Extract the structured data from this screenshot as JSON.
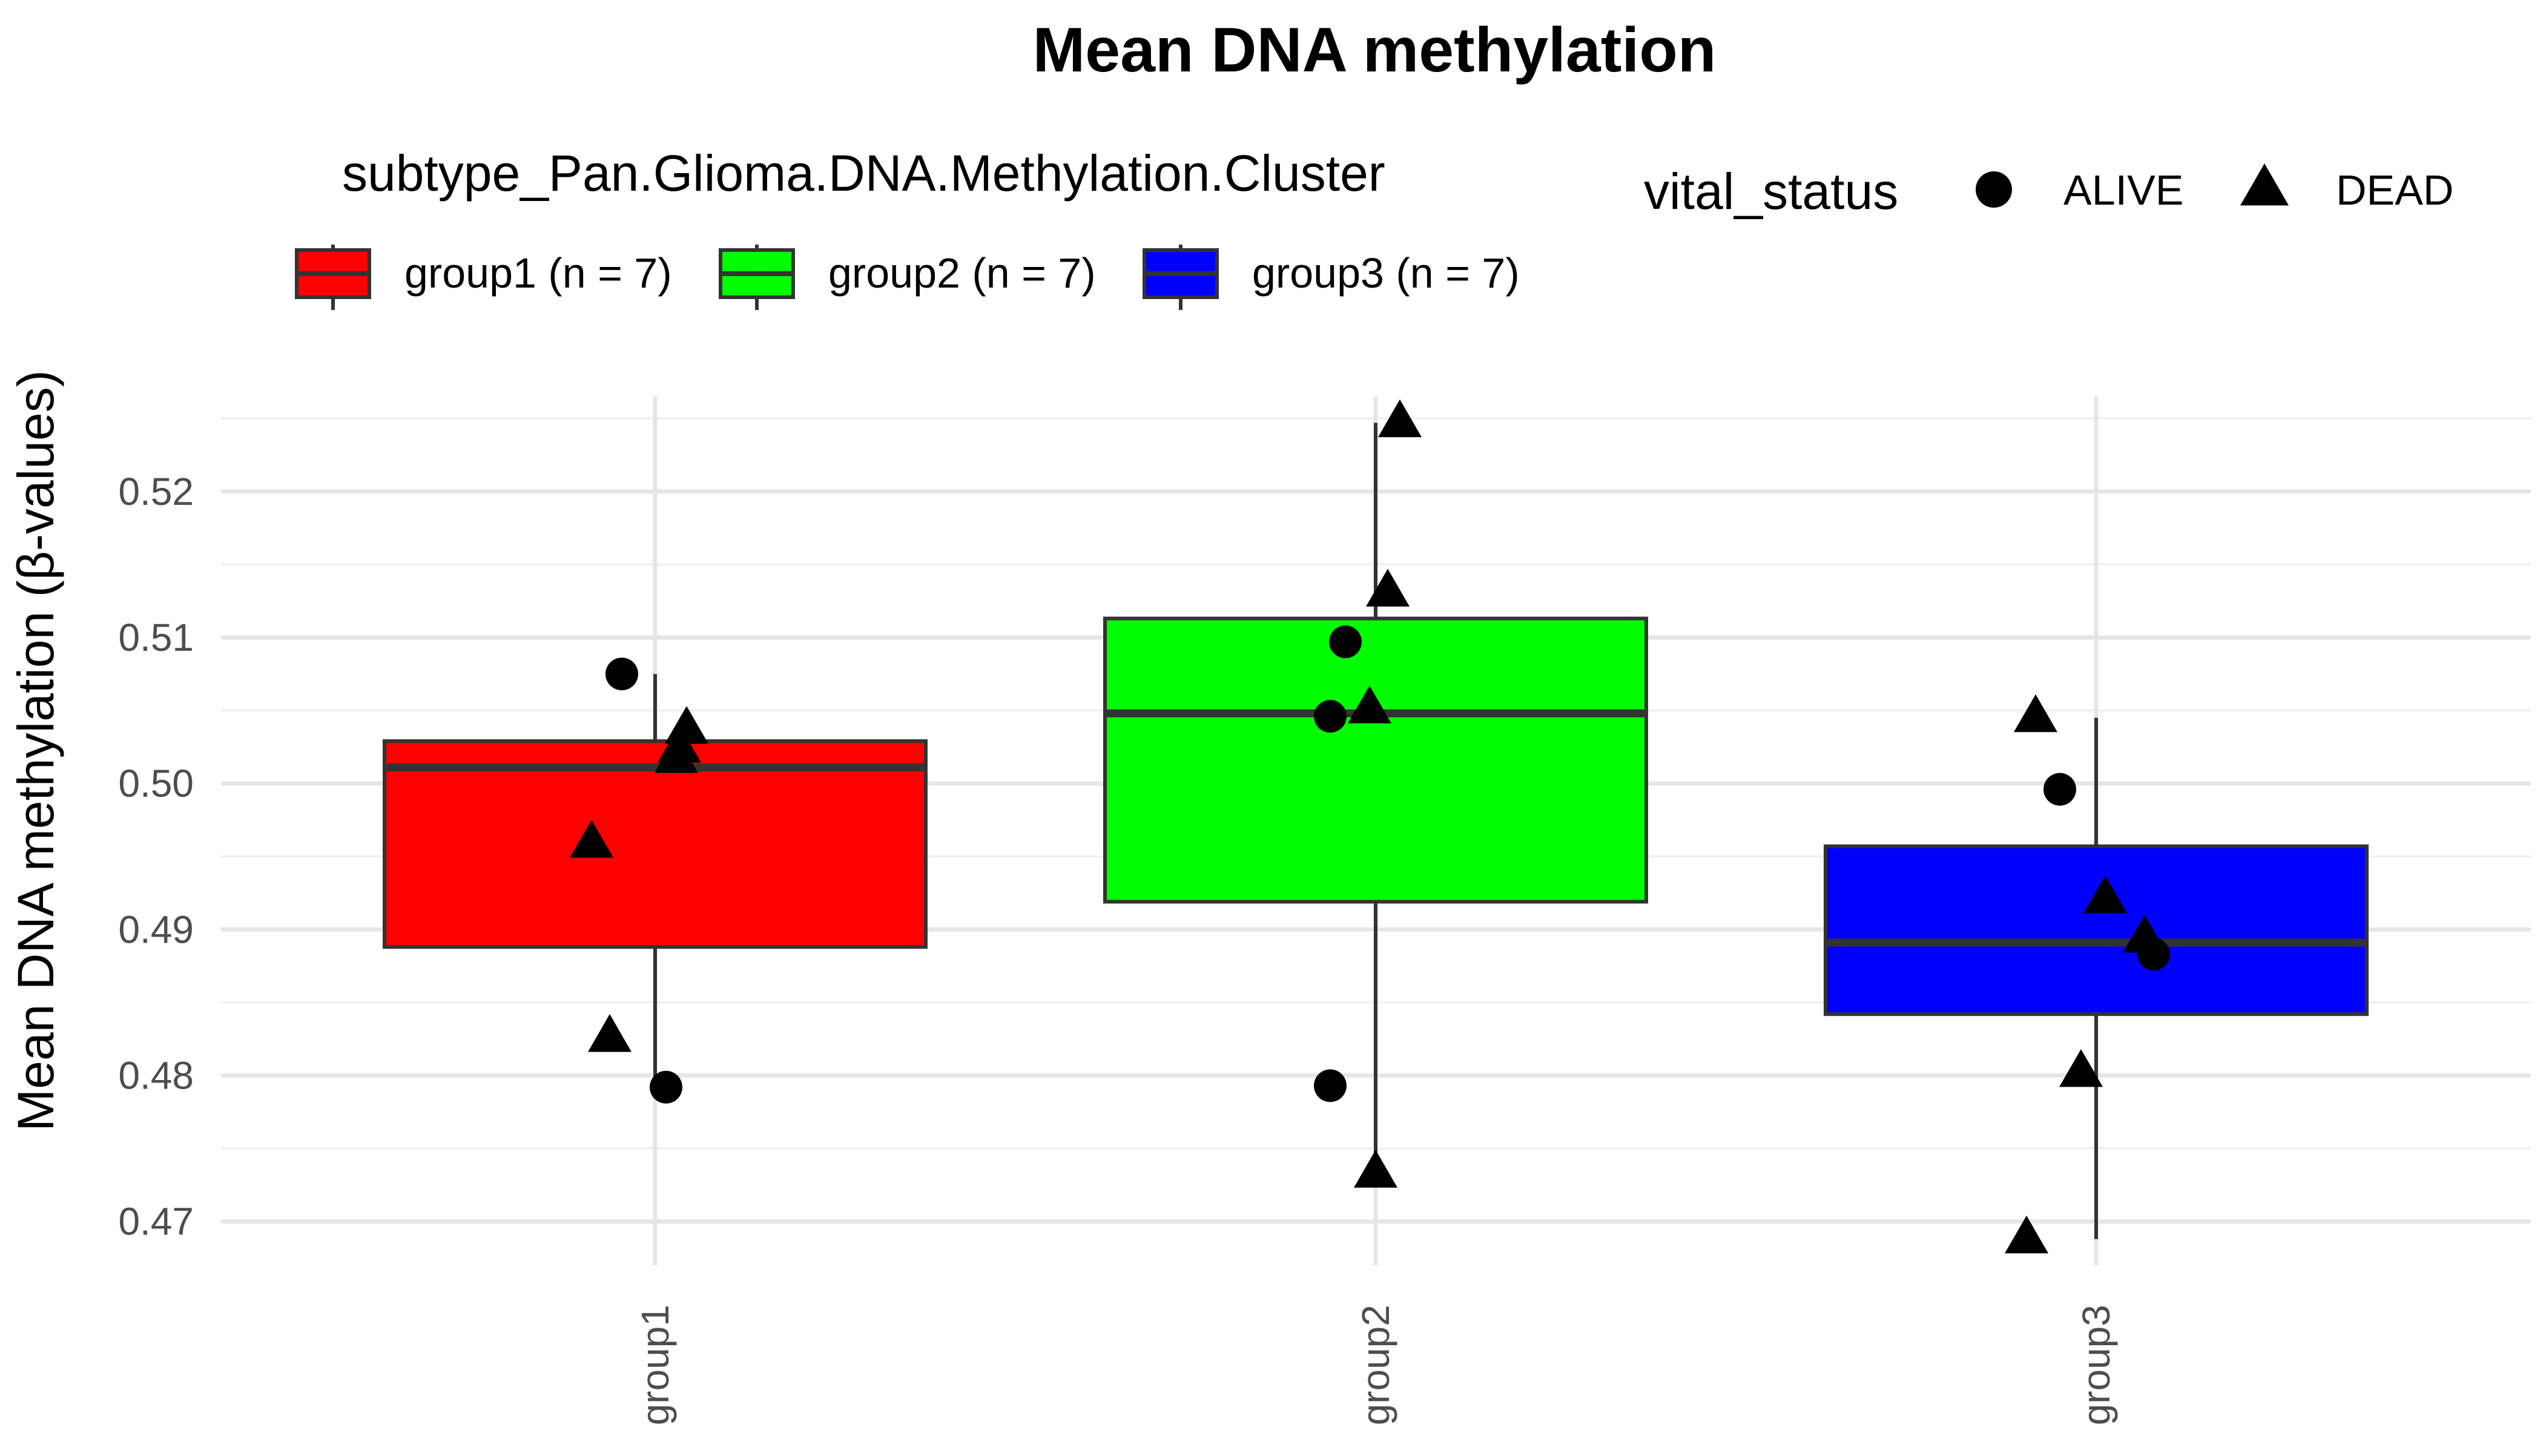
{
  "chart_data": {
    "type": "box",
    "title": "Mean DNA methylation",
    "xlabel": "",
    "ylabel": "Mean DNA methylation (β-values)",
    "ylim": [
      0.467,
      0.5265
    ],
    "yticks": [
      0.47,
      0.48,
      0.49,
      0.5,
      0.51,
      0.52
    ],
    "ytick_labels": [
      "0.47",
      "0.48",
      "0.49",
      "0.50",
      "0.51",
      "0.52"
    ],
    "grid": true,
    "categories": [
      "group1",
      "group2",
      "group3"
    ],
    "fill_legend": {
      "title": "subtype_Pan.Glioma.DNA.Methylation.Cluster",
      "position": "top",
      "entries": [
        {
          "label": "group1 (n = 7)",
          "color": "#FF0000"
        },
        {
          "label": "group2 (n = 7)",
          "color": "#00FF00"
        },
        {
          "label": "group3 (n = 7)",
          "color": "#0000FF"
        }
      ]
    },
    "shape_legend": {
      "title": "vital_status",
      "position": "top-right",
      "entries": [
        {
          "label": "ALIVE",
          "shape": "circle"
        },
        {
          "label": "DEAD",
          "shape": "triangle"
        }
      ]
    },
    "boxes": [
      {
        "category": "group1",
        "min": 0.4792,
        "q1": 0.4888,
        "median": 0.5011,
        "q3": 0.5029,
        "max": 0.5075
      },
      {
        "category": "group2",
        "min": 0.4733,
        "q1": 0.4919,
        "median": 0.5048,
        "q3": 0.5113,
        "max": 0.5247
      },
      {
        "category": "group3",
        "min": 0.4688,
        "q1": 0.4842,
        "median": 0.4891,
        "q3": 0.4957,
        "max": 0.5045
      }
    ],
    "points": [
      {
        "category": "group1",
        "y": 0.5075,
        "status": "ALIVE"
      },
      {
        "category": "group1",
        "y": 0.5037,
        "status": "DEAD"
      },
      {
        "category": "group1",
        "y": 0.5024,
        "status": "DEAD"
      },
      {
        "category": "group1",
        "y": 0.5017,
        "status": "DEAD"
      },
      {
        "category": "group1",
        "y": 0.4959,
        "status": "DEAD"
      },
      {
        "category": "group1",
        "y": 0.4826,
        "status": "DEAD"
      },
      {
        "category": "group1",
        "y": 0.4792,
        "status": "ALIVE"
      },
      {
        "category": "group2",
        "y": 0.5247,
        "status": "DEAD"
      },
      {
        "category": "group2",
        "y": 0.5131,
        "status": "DEAD"
      },
      {
        "category": "group2",
        "y": 0.5097,
        "status": "ALIVE"
      },
      {
        "category": "group2",
        "y": 0.5051,
        "status": "DEAD"
      },
      {
        "category": "group2",
        "y": 0.5046,
        "status": "ALIVE"
      },
      {
        "category": "group2",
        "y": 0.4793,
        "status": "ALIVE"
      },
      {
        "category": "group2",
        "y": 0.4733,
        "status": "DEAD"
      },
      {
        "category": "group3",
        "y": 0.5045,
        "status": "DEAD"
      },
      {
        "category": "group3",
        "y": 0.4996,
        "status": "ALIVE"
      },
      {
        "category": "group3",
        "y": 0.4921,
        "status": "DEAD"
      },
      {
        "category": "group3",
        "y": 0.4894,
        "status": "DEAD"
      },
      {
        "category": "group3",
        "y": 0.4883,
        "status": "ALIVE"
      },
      {
        "category": "group3",
        "y": 0.4802,
        "status": "DEAD"
      },
      {
        "category": "group3",
        "y": 0.4688,
        "status": "DEAD"
      }
    ]
  }
}
